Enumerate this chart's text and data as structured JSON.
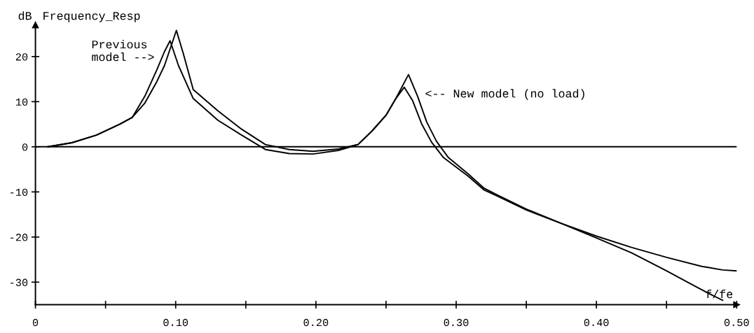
{
  "chart_data": {
    "type": "line",
    "title": "Frequency_Resp",
    "ylabel": "dB",
    "xlabel": "f/fe",
    "xlim": [
      0,
      0.5
    ],
    "ylim": [
      -35,
      27
    ],
    "xticks": [
      0,
      {
        "value": 0.05,
        "label": null
      },
      {
        "value": 0.1,
        "label": "0.10"
      },
      {
        "value": 0.15,
        "label": null
      },
      {
        "value": 0.2,
        "label": "0.20"
      },
      {
        "value": 0.25,
        "label": null
      },
      {
        "value": 0.3,
        "label": "0.30"
      },
      {
        "value": 0.35,
        "label": null
      },
      {
        "value": 0.4,
        "label": "0.40"
      },
      {
        "value": 0.45,
        "label": null
      },
      {
        "value": 0.5,
        "label": "0.50"
      }
    ],
    "yticks": [
      -30,
      -20,
      -10,
      0,
      10,
      20
    ],
    "grid": false,
    "legend": false,
    "marker": "none",
    "line_style": "solid",
    "ref_lines": [
      {
        "axis": "y",
        "value": 0,
        "label": null,
        "color": "#000000"
      }
    ],
    "annotations": [
      {
        "text": "Previous\nmodel -->",
        "x": 0.087,
        "y": 18.5
      },
      {
        "text": "<-- New model (no load)",
        "x": 0.275,
        "y": 11.6
      }
    ],
    "series": [
      {
        "color": "#000000",
        "x": [
          0.009,
          0.026,
          0.0435,
          0.06,
          0.069,
          0.078,
          0.0865,
          0.092,
          0.096,
          0.102,
          0.1125,
          0.13,
          0.147,
          0.164,
          0.181,
          0.198,
          0.216,
          0.23,
          0.24,
          0.25,
          0.257,
          0.263,
          0.269,
          0.2755,
          0.2825,
          0.291,
          0.3085,
          0.32,
          0.33,
          0.35,
          0.375,
          0.4,
          0.425,
          0.45,
          0.475,
          0.49,
          0.5
        ],
        "values": [
          0,
          0.9,
          2.6,
          5.0,
          6.5,
          11.2,
          17,
          21.1,
          23.5,
          18,
          10.7,
          5.9,
          2.6,
          -0.6,
          -1.5,
          -1.6,
          -0.8,
          0.5,
          3.5,
          7,
          10.7,
          13.2,
          10.2,
          5,
          1.0,
          -2.4,
          -6.5,
          -9.6,
          -11,
          -14,
          -17,
          -19.8,
          -22.3,
          -24.5,
          -26.5,
          -27.3,
          -27.5
        ]
      },
      {
        "color": "#000000",
        "x": [
          0.009,
          0.026,
          0.0435,
          0.06,
          0.069,
          0.078,
          0.0865,
          0.092,
          0.1005,
          0.1055,
          0.1125,
          0.13,
          0.147,
          0.164,
          0.181,
          0.198,
          0.216,
          0.23,
          0.24,
          0.25,
          0.257,
          0.266,
          0.2725,
          0.279,
          0.286,
          0.2945,
          0.3085,
          0.32,
          0.33,
          0.35,
          0.375,
          0.4,
          0.425,
          0.45,
          0.465,
          0.48,
          0.49
        ],
        "values": [
          0,
          0.9,
          2.6,
          5.0,
          6.5,
          9.7,
          14.4,
          18,
          25.8,
          20.6,
          12.7,
          8.0,
          3.9,
          0.5,
          -0.6,
          -1.0,
          -0.5,
          0.5,
          3.5,
          7,
          10.7,
          16.0,
          11.2,
          5.5,
          1.2,
          -2.4,
          -6,
          -9.2,
          -10.8,
          -13.8,
          -17,
          -20.2,
          -23.5,
          -27.5,
          -30,
          -32.5,
          -34
        ]
      }
    ]
  }
}
